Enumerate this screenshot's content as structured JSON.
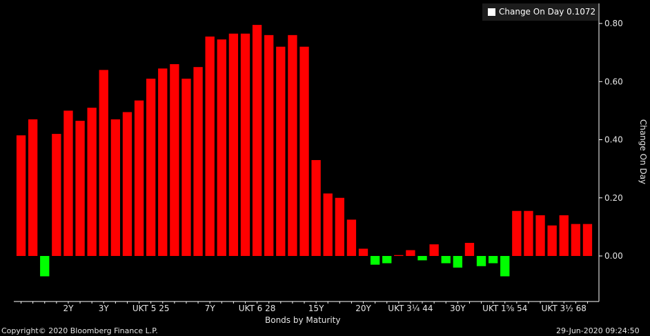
{
  "chart_data": {
    "type": "bar",
    "title": "",
    "legend": {
      "label": "Change On Day 0.1072",
      "color": "#ffffff",
      "placement": "top-right"
    },
    "xlabel": "Bonds by Maturity",
    "ylabel": "Change On Day",
    "ylim": [
      -0.15,
      0.85
    ],
    "yticks": [
      "0.80",
      "0.60",
      "0.40",
      "0.20",
      "0.00"
    ],
    "ytick_values": [
      0.8,
      0.6,
      0.4,
      0.2,
      0.0
    ],
    "x_tick_labels": [
      {
        "index": 4,
        "label": "2Y"
      },
      {
        "index": 7,
        "label": "3Y"
      },
      {
        "index": 11,
        "label": "UKT 5 25"
      },
      {
        "index": 16,
        "label": "7Y"
      },
      {
        "index": 20,
        "label": "UKT 6 28"
      },
      {
        "index": 25,
        "label": "15Y"
      },
      {
        "index": 29,
        "label": "20Y"
      },
      {
        "index": 33,
        "label": "UKT 3¼ 44"
      },
      {
        "index": 37,
        "label": "30Y"
      },
      {
        "index": 41,
        "label": "UKT 1⅝ 54"
      },
      {
        "index": 46,
        "label": "UKT 3½ 68"
      }
    ],
    "positive_color": "#ff0000",
    "negative_color": "#00ff00",
    "values": [
      0.415,
      0.47,
      -0.07,
      0.42,
      0.5,
      0.465,
      0.51,
      0.64,
      0.47,
      0.495,
      0.535,
      0.61,
      0.645,
      0.66,
      0.61,
      0.65,
      0.755,
      0.745,
      0.765,
      0.765,
      0.795,
      0.76,
      0.72,
      0.76,
      0.72,
      0.33,
      0.215,
      0.2,
      0.125,
      0.025,
      -0.03,
      -0.025,
      0.003,
      0.02,
      -0.015,
      0.04,
      -0.025,
      -0.04,
      0.045,
      -0.035,
      -0.025,
      -0.07,
      0.155,
      0.155,
      0.14,
      0.105,
      0.14,
      0.11,
      0.11
    ]
  },
  "footer": {
    "copyright": "Copyright© 2020 Bloomberg Finance L.P.",
    "timestamp": "29-Jun-2020 09:24:50"
  }
}
